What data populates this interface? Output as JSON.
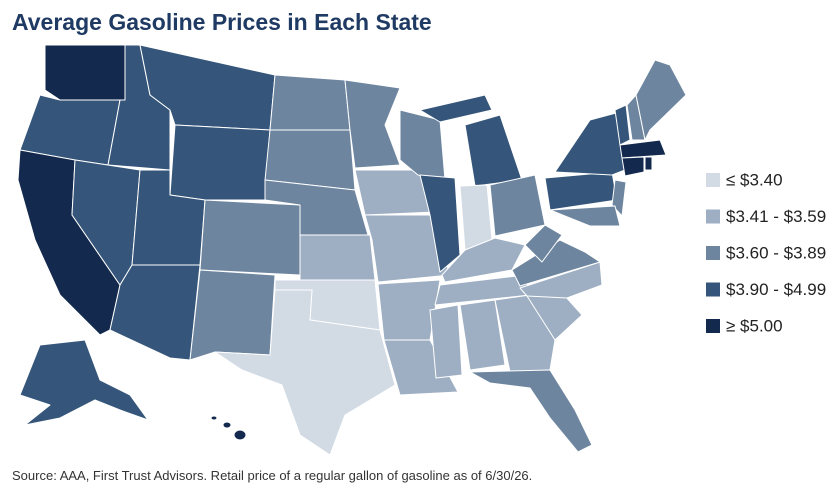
{
  "title": "Average Gasoline Prices in Each State",
  "legend": {
    "items": [
      {
        "label": "≤ $3.40",
        "color": "#d2dae4"
      },
      {
        "label": "$3.41 - $3.59",
        "color": "#9eafc3"
      },
      {
        "label": "$3.60 - $3.89",
        "color": "#6d859f"
      },
      {
        "label": "$3.90 - $4.99",
        "color": "#35567a"
      },
      {
        "label": "≥ $5.00",
        "color": "#13294d"
      }
    ]
  },
  "source": "Source: AAA, First Trust Advisors. Retail price of a regular gallon of gasoline as of 6/30/26."
}
